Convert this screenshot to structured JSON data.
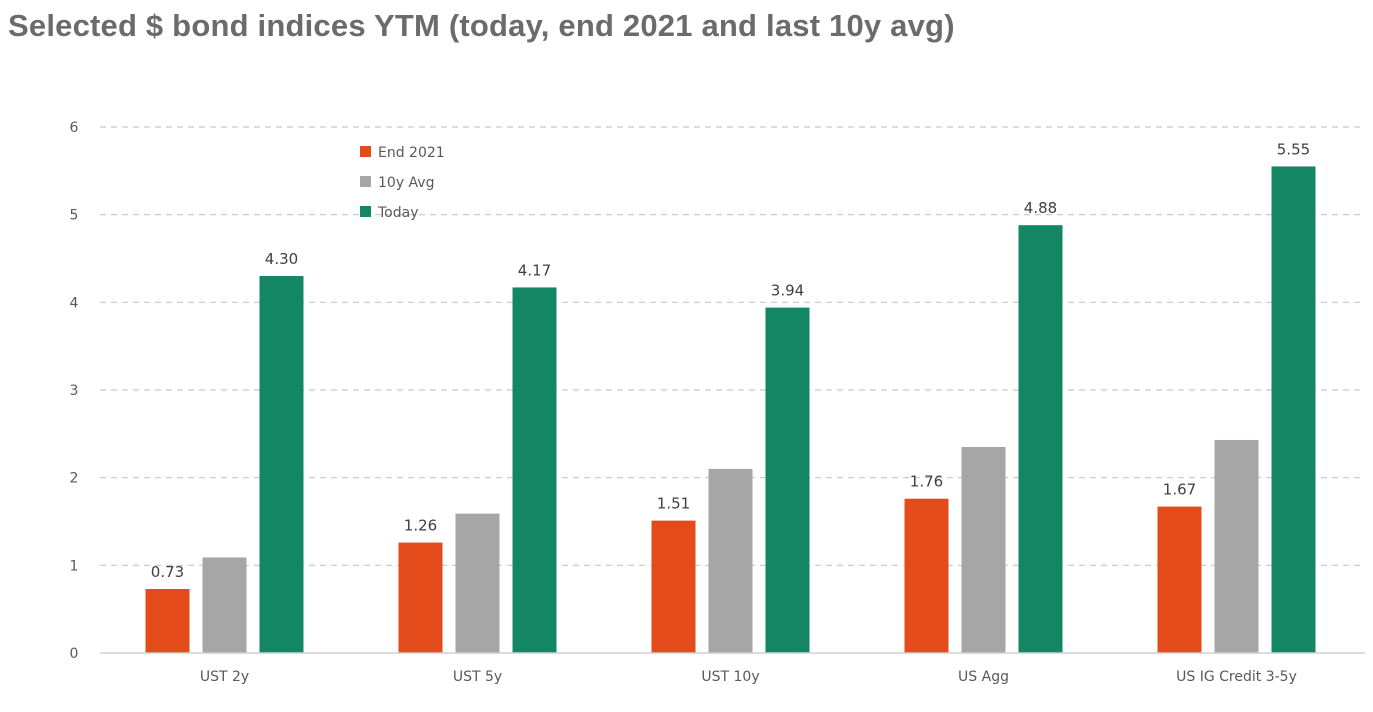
{
  "chart_data": {
    "type": "bar",
    "title": "Selected $ bond indices YTM (today, end 2021 and last 10y avg)",
    "categories": [
      "UST 2y",
      "UST 5y",
      "UST 10y",
      "US Agg",
      "US IG Credit 3-5y"
    ],
    "series": [
      {
        "name": "End 2021",
        "color": "#e34b1b",
        "values": [
          0.73,
          1.26,
          1.51,
          1.76,
          1.67
        ],
        "labels": [
          "0.73",
          "1.26",
          "1.51",
          "1.76",
          "1.67"
        ]
      },
      {
        "name": "10y Avg",
        "color": "#a6a6a6",
        "values": [
          1.09,
          1.59,
          2.1,
          2.35,
          2.43
        ],
        "labels": null
      },
      {
        "name": "Today",
        "color": "#138664",
        "values": [
          4.3,
          4.17,
          3.94,
          4.88,
          5.55
        ],
        "labels": [
          "4.30",
          "4.17",
          "3.94",
          "4.88",
          "5.55"
        ]
      }
    ],
    "ylim": [
      0,
      6
    ],
    "yticks": [
      0,
      1,
      2,
      3,
      4,
      5,
      6
    ],
    "xlabel": "",
    "ylabel": "",
    "grid": true,
    "legend": "top-left"
  }
}
